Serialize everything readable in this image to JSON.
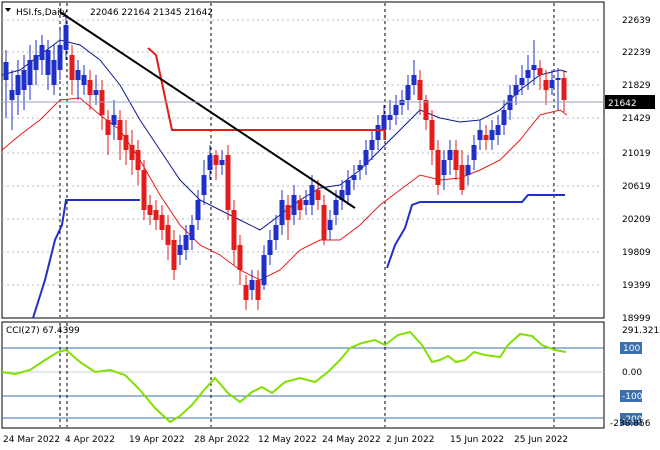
{
  "header": {
    "symbol_line": "HSI.fs,Daily",
    "ohlc": "22046 22164 21345 21642"
  },
  "price_panel": {
    "y_ticks": [
      "22639",
      "22239",
      "21829",
      "21429",
      "21019",
      "20619",
      "20209",
      "19809",
      "19399",
      "18999"
    ],
    "current_price_label": "21642"
  },
  "cci_panel": {
    "title": "CCI(27) 67.4399",
    "max_label": "291.3217",
    "min_label": "-238.856",
    "levels": [
      "100",
      "0.00",
      "-100",
      "-200"
    ]
  },
  "x_axis_labels": [
    "24 Mar 2022",
    "4 Apr 2022",
    "19 Apr 2022",
    "28 Apr 2022",
    "12 May 2022",
    "24 May 2022",
    "2 Jun 2022",
    "15 Jun 2022",
    "25 Jun 2022"
  ],
  "colors": {
    "bull": "#1f2fc8",
    "bear": "#e41b1b",
    "cci_line": "#80e000",
    "trendline": "#000000",
    "upper_ma": "#0b1a8a",
    "lower_ma": "#e41b1b",
    "level_line": "#3b6fae"
  }
}
